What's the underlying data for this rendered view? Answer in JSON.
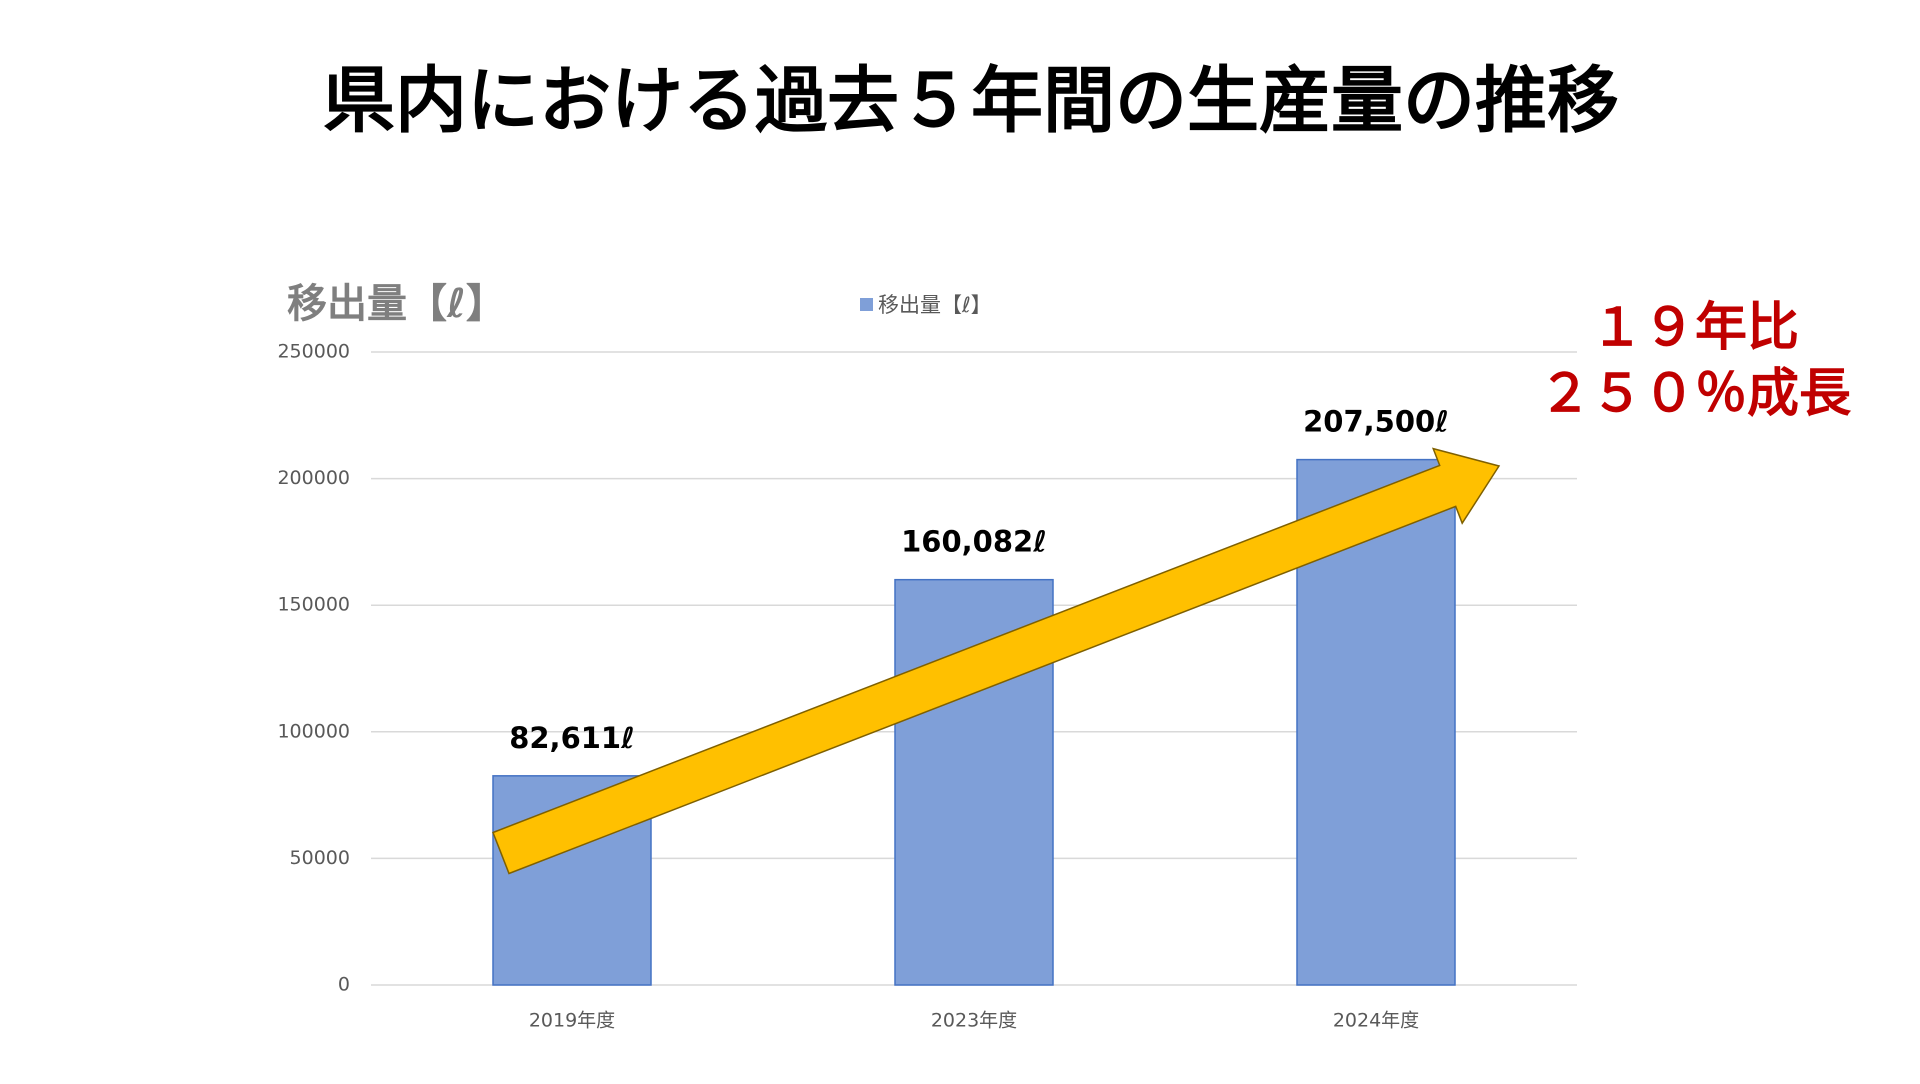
{
  "chart_data": {
    "type": "bar",
    "title": "県内における過去５年間の生産量の推移",
    "y_axis_label": "移出量【ℓ】",
    "categories": [
      "2019年度",
      "2023年度",
      "2024年度"
    ],
    "series": [
      {
        "name": "移出量【ℓ】",
        "color": "#7f9fd8",
        "values": [
          82611,
          160082,
          207500
        ],
        "value_labels": [
          "82,611ℓ",
          "160,082ℓ",
          "207,500ℓ"
        ]
      }
    ],
    "ylim": [
      0,
      250000
    ],
    "yticks": [
      0,
      50000,
      100000,
      150000,
      200000,
      250000
    ],
    "grid": true,
    "legend": "top",
    "annotation": [
      "１９年比",
      "２５０％成長"
    ]
  }
}
